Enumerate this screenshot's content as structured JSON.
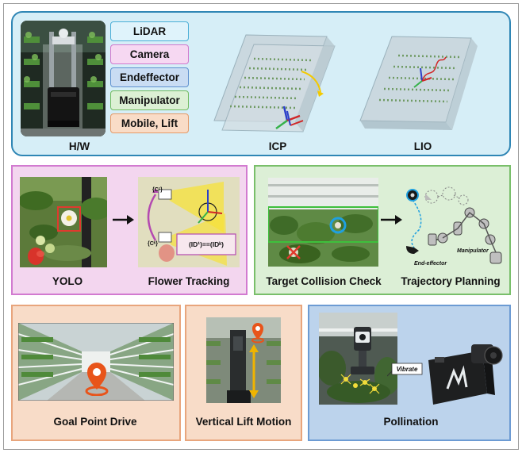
{
  "colors": {
    "hw_panel": "#d6eef7",
    "hw_border": "#2f86b5",
    "perception_panel": "#f3d6ef",
    "perception_border": "#d27ad0",
    "planning_panel": "#dcefd6",
    "planning_border": "#79bf6a",
    "drive_panel": "#f8dcc8",
    "drive_border": "#e8a57c",
    "pollination_panel": "#bcd3ec",
    "pollination_border": "#6c9bd3",
    "yolo_box": "#e03a2e",
    "collision_ring": "#1fa0e0",
    "lift_arrow": "#f0b400",
    "goal_marker": "#e8541a"
  },
  "hw": {
    "components": [
      {
        "label": "LiDAR",
        "color": "#dff3fb",
        "border": "#4aaed6"
      },
      {
        "label": "Camera",
        "color": "#f6d8f2",
        "border": "#d079cd"
      },
      {
        "label": "Endeffector",
        "color": "#c9dcf3",
        "border": "#5f90cf"
      },
      {
        "label": "Manipulator",
        "color": "#dcf0d4",
        "border": "#71bb5f"
      },
      {
        "label": "Mobile, Lift",
        "color": "#f9dcc7",
        "border": "#e59a68"
      }
    ],
    "caption": "H/W"
  },
  "mapping": {
    "icp_caption": "ICP",
    "lio_caption": "LIO"
  },
  "perception": {
    "yolo_caption": "YOLO",
    "tracking_caption": "Flower Tracking",
    "frame_label_top": "{C¹}",
    "frame_label_bottom": "{Cᵏ}",
    "id_equation": "(ID¹)==(IDᵏ)"
  },
  "planning": {
    "collision_caption": "Target Collision Check",
    "trajectory_caption": "Trajectory Planning",
    "manipulator_label": "Manipulator",
    "end_effector_label": "End-effector"
  },
  "drive": {
    "goal_caption": "Goal Point Drive",
    "lift_caption": "Vertical Lift Motion"
  },
  "pollination": {
    "caption": "Pollination",
    "vibrate_label": "Vibrate",
    "logo_text": "M"
  }
}
